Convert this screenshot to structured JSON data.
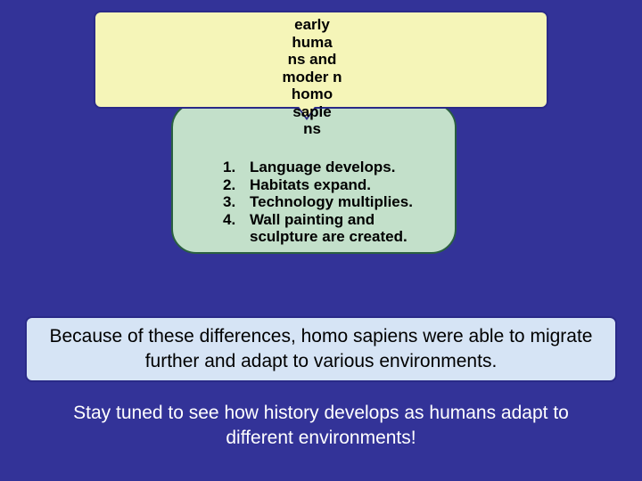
{
  "colors": {
    "background": "#333398",
    "yellowFill": "#f5f5b8",
    "yellowBorder": "#2a2a88",
    "greenFill": "#c3e0ca",
    "greenBorder": "#2a6040",
    "blueFill": "#d6e4f5",
    "blueBorder": "#2a2a88",
    "textDark": "#000000",
    "textLight": "#ffffff"
  },
  "centerText": "early huma ns and moder n homo sapie ns",
  "list": {
    "items": [
      {
        "num": "1.",
        "text": "Language develops."
      },
      {
        "num": "2.",
        "text": "Habitats expand."
      },
      {
        "num": "3.",
        "text": "Technology multiplies."
      },
      {
        "num": "4.",
        "text": "Wall painting and sculpture are created."
      }
    ]
  },
  "banner": "Because of these differences, homo sapiens were able to migrate further and adapt to various environments.",
  "footer": "Stay tuned to see how history develops as humans adapt to different environments!"
}
